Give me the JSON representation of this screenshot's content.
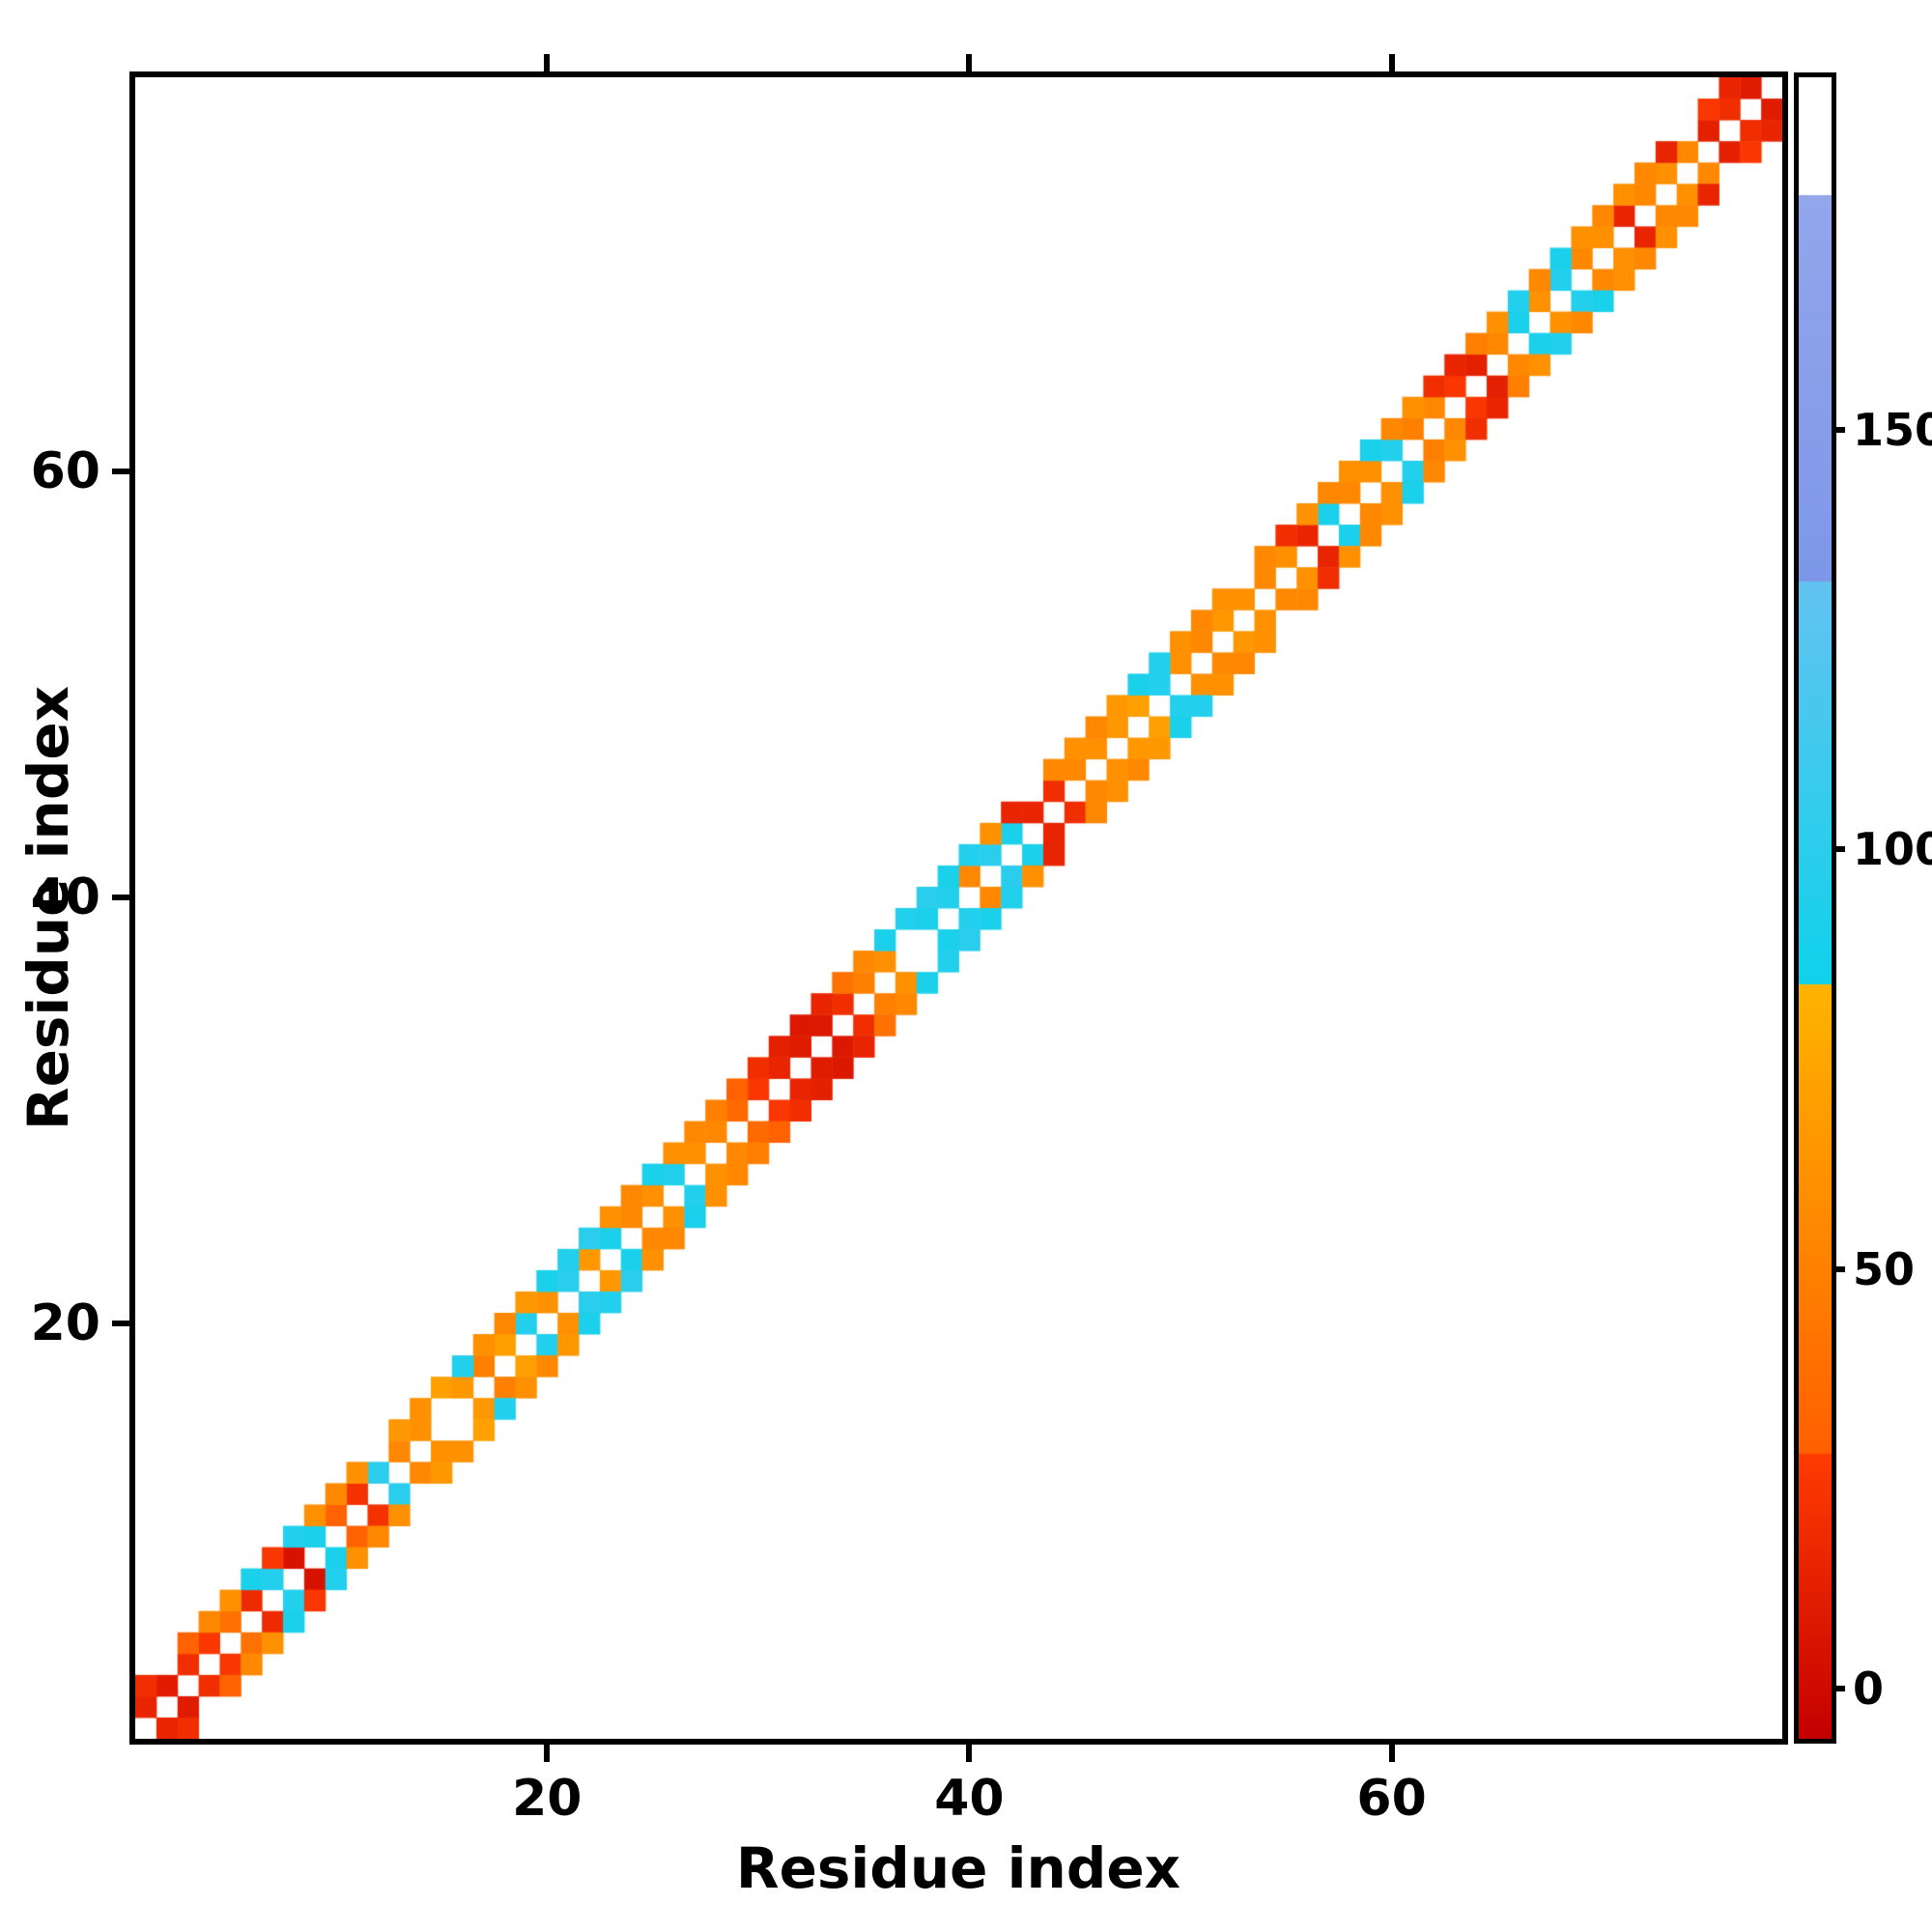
{
  "chart_data": {
    "type": "heatmap",
    "title": "",
    "xlabel": "Residue index",
    "ylabel": "Residue index",
    "n_residues": 78,
    "x_ticks": [
      20,
      40,
      60
    ],
    "y_ticks": [
      20,
      40,
      60
    ],
    "origin": "lower",
    "symmetric": true,
    "diagonal_empty": true,
    "background_value": null,
    "bands": {
      "offset_1": [
        15,
        10,
        20,
        25,
        40,
        18,
        95,
        5,
        90,
        30,
        22,
        100,
        55,
        60,
        null,
        65,
        50,
        70,
        95,
        60,
        100,
        65,
        90,
        55,
        60,
        95,
        60,
        55,
        35,
        25,
        15,
        10,
        8,
        20,
        50,
        60,
        null,
        90,
        95,
        55,
        100,
        90,
        15,
        20,
        55,
        60,
        65,
        70,
        95,
        60,
        55,
        65,
        60,
        55,
        60,
        15,
        90,
        55,
        60,
        95,
        50,
        55,
        25,
        12,
        55,
        90,
        60,
        95,
        55,
        60,
        15,
        55,
        60,
        55,
        12,
        20,
        10
      ],
      "offset_2": [
        20,
        null,
        30,
        55,
        60,
        90,
        25,
        95,
        60,
        55,
        60,
        null,
        65,
        60,
        70,
        95,
        60,
        55,
        65,
        90,
        95,
        100,
        60,
        55,
        90,
        60,
        55,
        50,
        30,
        20,
        12,
        8,
        15,
        40,
        55,
        90,
        95,
        100,
        90,
        95,
        60,
        15,
        null,
        55,
        60,
        55,
        65,
        90,
        95,
        60,
        55,
        60,
        null,
        55,
        20,
        60,
        55,
        60,
        90,
        55,
        60,
        20,
        15,
        50,
        60,
        95,
        55,
        90,
        60,
        55,
        60,
        55,
        15,
        null,
        25,
        15
      ]
    },
    "colorbar": {
      "ticks": [
        0,
        50,
        100,
        150
      ],
      "vmin": -6,
      "vmax": 192,
      "segments": [
        {
          "v0": -6,
          "v1": 28,
          "c0": "#c40000",
          "c1": "#ff3c00"
        },
        {
          "v0": 28,
          "v1": 84,
          "c0": "#ff5f00",
          "c1": "#ffb400"
        },
        {
          "v0": 84,
          "v1": 132,
          "c0": "#0fd2ea",
          "c1": "#63c3f1"
        },
        {
          "v0": 132,
          "v1": 178,
          "c0": "#7d97e8",
          "c1": "#93a6ec"
        },
        {
          "v0": 178,
          "v1": 192,
          "c0": "#ffffff",
          "c1": "#ffffff"
        }
      ]
    }
  }
}
